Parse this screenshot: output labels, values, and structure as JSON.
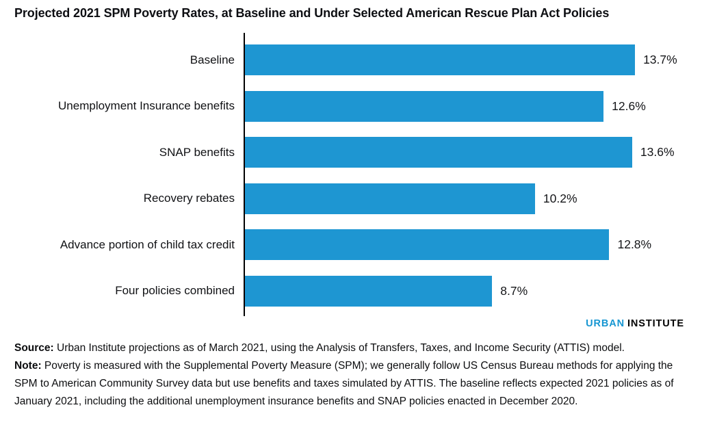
{
  "title": "Projected 2021 SPM Poverty Rates, at Baseline and Under Selected American Rescue Plan Act Policies",
  "chart_data": {
    "type": "bar",
    "orientation": "horizontal",
    "title": "Projected 2021 SPM Poverty Rates, at Baseline and Under Selected American Rescue Plan Act Policies",
    "categories": [
      "Baseline",
      "Unemployment Insurance benefits",
      "SNAP benefits",
      "Recovery rebates",
      "Advance portion of child tax credit",
      "Four policies combined"
    ],
    "values": [
      13.7,
      12.6,
      13.6,
      10.2,
      12.8,
      8.7
    ],
    "value_labels": [
      "13.7%",
      "12.6%",
      "13.6%",
      "10.2%",
      "12.8%",
      "8.7%"
    ],
    "xlabel": "",
    "ylabel": "",
    "unit": "percent",
    "xlim": [
      0,
      16.5
    ],
    "grid": false,
    "legend": "none",
    "bar_color": "#1e96d2",
    "axis_color": "#000000"
  },
  "branding": {
    "brand_primary": "URBAN",
    "brand_secondary": "INSTITUTE",
    "brand_color": "#1696d2"
  },
  "footer": {
    "source_label": "Source:",
    "source_text": " Urban Institute projections as of March 2021, using the Analysis of Transfers, Taxes, and Income Security (ATTIS) model.",
    "note_label": "Note:",
    "note_text": " Poverty is measured with the Supplemental Poverty Measure (SPM); we generally follow US Census Bureau methods for applying the SPM to American Community Survey data but use benefits and taxes simulated by ATTIS. The baseline reflects expected 2021 policies as of January 2021, including the additional unemployment insurance benefits and SNAP policies enacted in December 2020."
  }
}
